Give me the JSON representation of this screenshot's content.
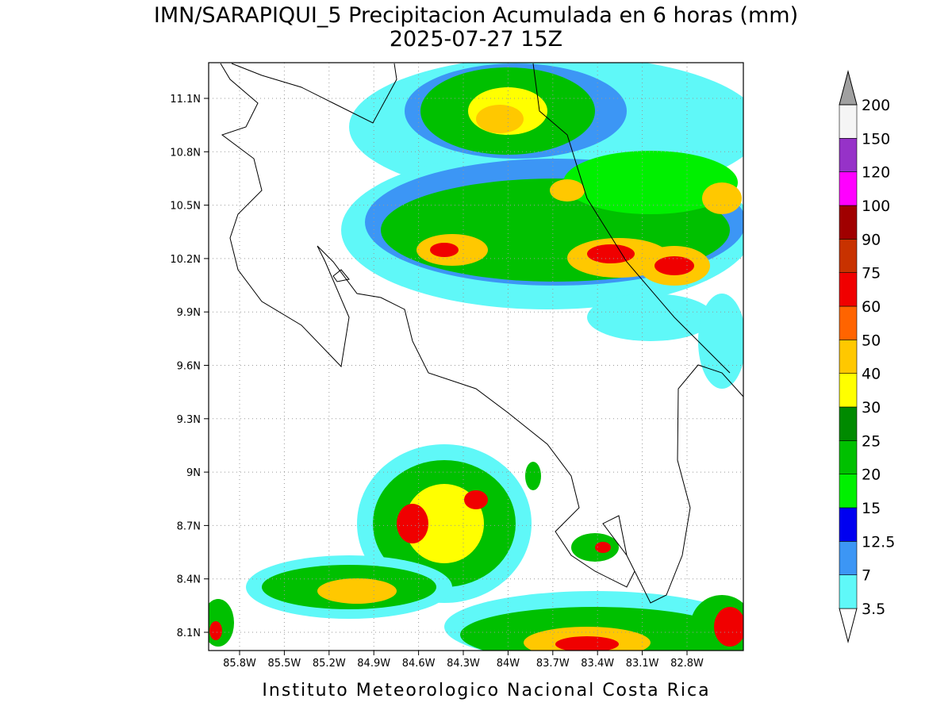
{
  "title": "IMN/SARAPIQUI_5 Precipitacion Acumulada en 6 horas (mm)",
  "subtitle": "2025-07-27 15Z",
  "map": {
    "lat_ticks": [
      "11.1N",
      "10.8N",
      "10.5N",
      "10.2N",
      "9.9N",
      "9.6N",
      "9.3N",
      "9N",
      "8.7N",
      "8.4N",
      "8.1N"
    ],
    "lon_ticks": [
      "85.8W",
      "85.5W",
      "85.2W",
      "84.9W",
      "84.6W",
      "84.3W",
      "84W",
      "83.7W",
      "83.4W",
      "83.1W",
      "82.8W"
    ]
  },
  "colorbar": {
    "levels": [
      3.5,
      7,
      12.5,
      15,
      20,
      25,
      30,
      40,
      50,
      60,
      75,
      90,
      100,
      120,
      150,
      200
    ],
    "colors": [
      "#ffffff",
      "#5ff8f8",
      "#3c96f5",
      "#0000f0",
      "#00f000",
      "#00c000",
      "#008a00",
      "#ffff00",
      "#ffc800",
      "#ff6400",
      "#f00000",
      "#c83200",
      "#a00000",
      "#ff00ff",
      "#9632c8",
      "#f5f5f5",
      "#a0a0a0"
    ]
  },
  "footer": "Instituto Meteorologico Nacional Costa Rica"
}
